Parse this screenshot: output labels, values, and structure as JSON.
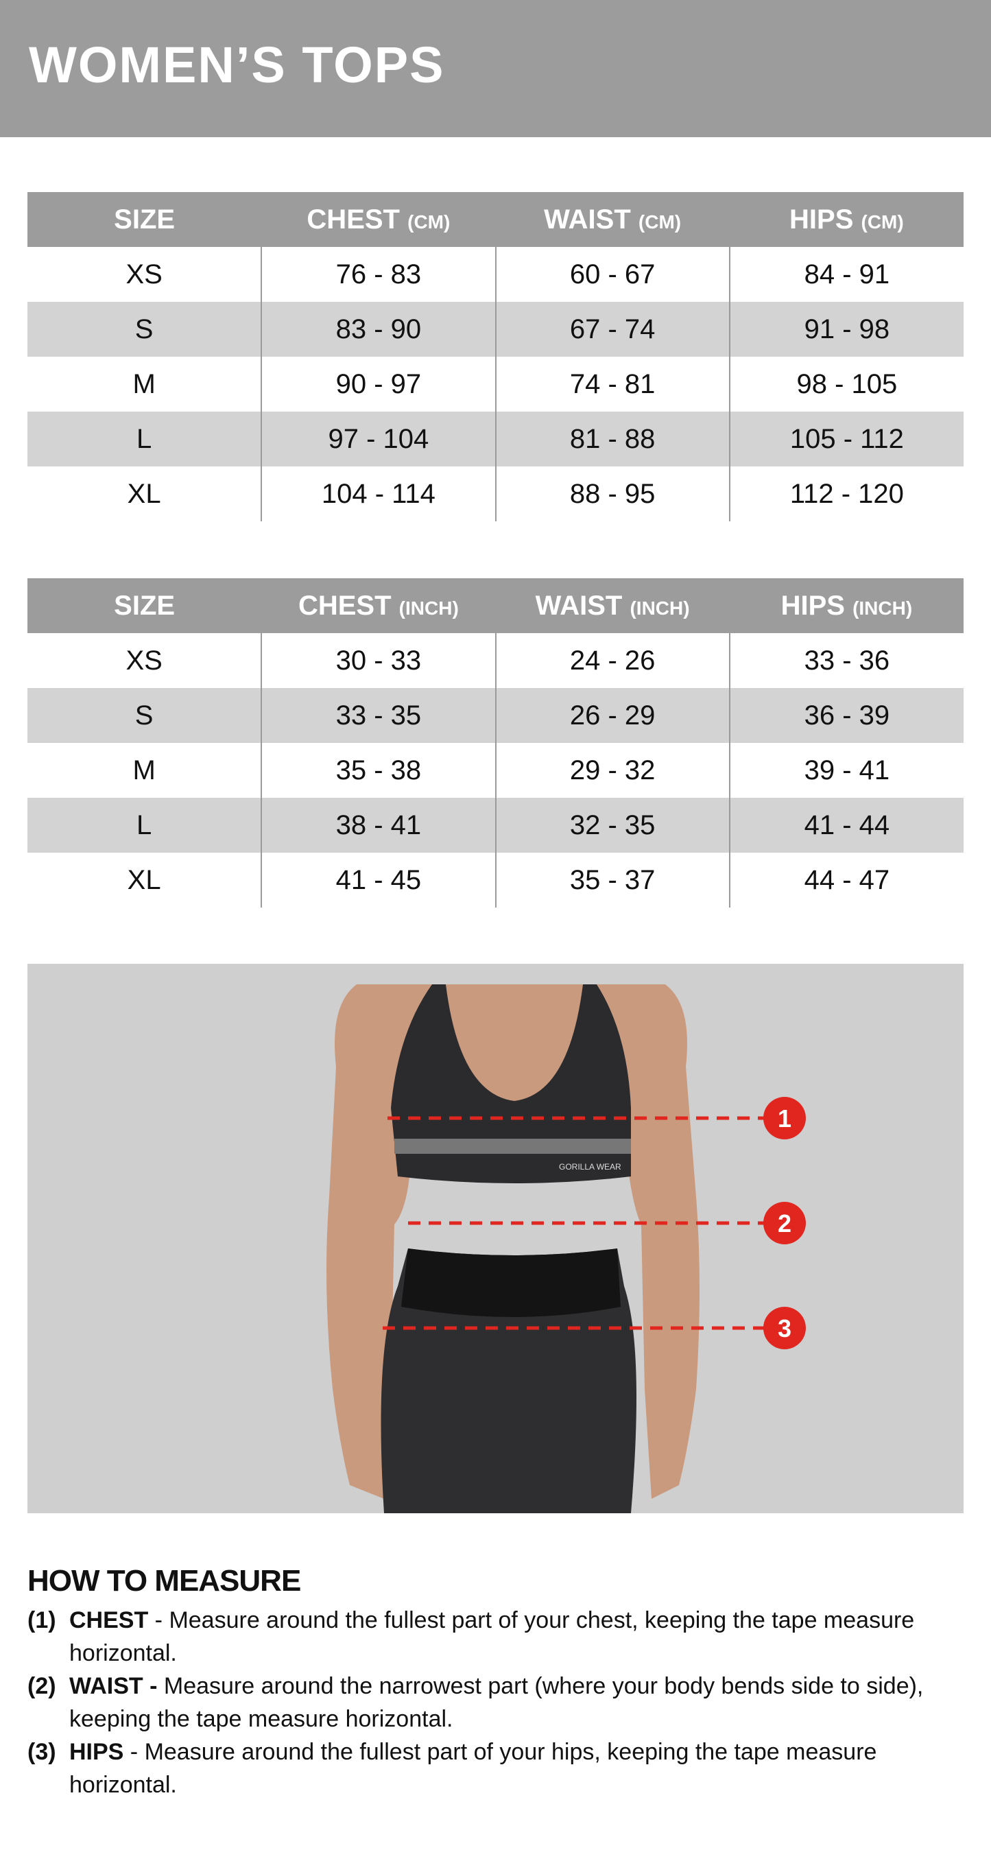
{
  "title": "WOMEN’S TOPS",
  "tables": [
    {
      "headers": [
        {
          "label": "SIZE",
          "unit": ""
        },
        {
          "label": "CHEST",
          "unit": "(CM)"
        },
        {
          "label": "WAIST",
          "unit": "(CM)"
        },
        {
          "label": "HIPS",
          "unit": "(CM)"
        }
      ],
      "rows": [
        [
          "XS",
          "76 - 83",
          "60 - 67",
          "84 - 91"
        ],
        [
          "S",
          "83 - 90",
          "67 - 74",
          "91 - 98"
        ],
        [
          "M",
          "90 - 97",
          "74 - 81",
          "98 - 105"
        ],
        [
          "L",
          "97 - 104",
          "81 - 88",
          "105 - 112"
        ],
        [
          "XL",
          "104 - 114",
          "88 - 95",
          "112 - 120"
        ]
      ]
    },
    {
      "headers": [
        {
          "label": "SIZE",
          "unit": ""
        },
        {
          "label": "CHEST",
          "unit": "(INCH)"
        },
        {
          "label": "WAIST",
          "unit": "(INCH)"
        },
        {
          "label": "HIPS",
          "unit": "(INCH)"
        }
      ],
      "rows": [
        [
          "XS",
          "30 - 33",
          "24 - 26",
          "33 - 36"
        ],
        [
          "S",
          "33 - 35",
          "26 - 29",
          "36 - 39"
        ],
        [
          "M",
          "35 - 38",
          "29 - 32",
          "39 - 41"
        ],
        [
          "L",
          "38 - 41",
          "32 - 35",
          "41 - 44"
        ],
        [
          "XL",
          "41 - 45",
          "35 - 37",
          "44 - 47"
        ]
      ]
    }
  ],
  "photo": {
    "markers": [
      "1",
      "2",
      "3"
    ],
    "marker_color": "#e0261f",
    "brand_text": "GORILLA WEAR"
  },
  "how_to_measure": {
    "heading": "HOW TO MEASURE",
    "items": [
      {
        "num": "(1)",
        "term": "CHEST",
        "text": " - Measure around the fullest part of your chest, keeping the tape measure horizontal."
      },
      {
        "num": "(2)",
        "term": "WAIST -",
        "text": " Measure around the narrowest part (where your body bends side to side), keeping the tape measure horizontal."
      },
      {
        "num": "(3)",
        "term": "HIPS",
        "text": " - Measure around the fullest part of your hips, keeping the tape measure horizontal."
      }
    ]
  },
  "colors": {
    "header_gray": "#9c9c9c",
    "stripe_gray": "#d3d3d3",
    "photo_bg": "#cfcfcf"
  }
}
